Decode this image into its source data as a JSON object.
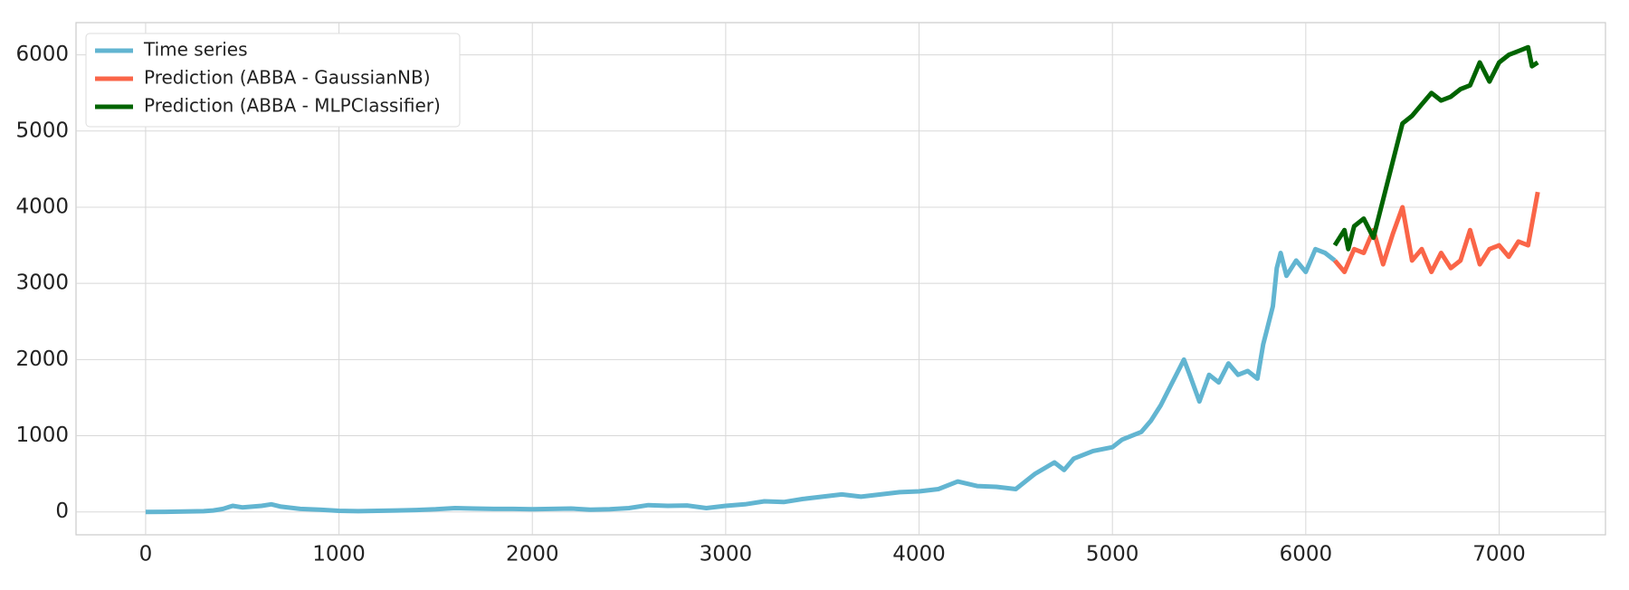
{
  "chart_data": {
    "type": "line",
    "grid": true,
    "legend": "upper left",
    "xlim": [
      -360,
      7550
    ],
    "ylim": [
      -300,
      6423
    ],
    "xticks": [
      0,
      1000,
      2000,
      3000,
      4000,
      5000,
      6000,
      7000
    ],
    "yticks": [
      0,
      1000,
      2000,
      3000,
      4000,
      5000,
      6000
    ],
    "series": [
      {
        "name": "Time series",
        "color": "#62b5d1",
        "x": [
          0,
          100,
          200,
          300,
          350,
          400,
          450,
          500,
          550,
          600,
          650,
          700,
          800,
          900,
          1000,
          1100,
          1200,
          1300,
          1400,
          1500,
          1600,
          1700,
          1800,
          1900,
          2000,
          2100,
          2200,
          2300,
          2400,
          2500,
          2600,
          2700,
          2800,
          2900,
          3000,
          3100,
          3200,
          3300,
          3400,
          3500,
          3600,
          3700,
          3800,
          3900,
          4000,
          4100,
          4200,
          4300,
          4400,
          4500,
          4600,
          4700,
          4750,
          4800,
          4900,
          5000,
          5050,
          5100,
          5150,
          5200,
          5250,
          5300,
          5350,
          5370,
          5400,
          5450,
          5500,
          5550,
          5600,
          5650,
          5700,
          5750,
          5780,
          5800,
          5830,
          5850,
          5870,
          5900,
          5950,
          6000,
          6050,
          6100,
          6150
        ],
        "values": [
          0,
          2,
          5,
          10,
          20,
          40,
          80,
          60,
          70,
          80,
          100,
          70,
          40,
          30,
          15,
          10,
          15,
          20,
          25,
          35,
          50,
          45,
          40,
          40,
          35,
          40,
          45,
          30,
          35,
          50,
          90,
          80,
          85,
          50,
          80,
          100,
          140,
          130,
          170,
          200,
          230,
          200,
          230,
          260,
          270,
          300,
          400,
          340,
          330,
          300,
          500,
          650,
          550,
          700,
          800,
          850,
          950,
          1000,
          1050,
          1200,
          1400,
          1650,
          1900,
          2000,
          1800,
          1450,
          1800,
          1700,
          1950,
          1800,
          1850,
          1750,
          2200,
          2400,
          2700,
          3200,
          3400,
          3100,
          3300,
          3150,
          3450,
          3400,
          3300
        ]
      },
      {
        "name": "Prediction (ABBA - GaussianNB)",
        "color": "#fa6548",
        "x": [
          6150,
          6200,
          6250,
          6300,
          6350,
          6400,
          6450,
          6500,
          6550,
          6600,
          6650,
          6700,
          6750,
          6800,
          6850,
          6900,
          6950,
          7000,
          7050,
          7100,
          7150,
          7200
        ],
        "values": [
          3300,
          3150,
          3450,
          3400,
          3700,
          3250,
          3650,
          4000,
          3300,
          3450,
          3150,
          3400,
          3200,
          3300,
          3700,
          3250,
          3450,
          3500,
          3350,
          3550,
          3500,
          4200
        ]
      },
      {
        "name": "Prediction (ABBA - MLPClassifier)",
        "color": "#006400",
        "x": [
          6150,
          6200,
          6220,
          6250,
          6300,
          6350,
          6400,
          6450,
          6500,
          6550,
          6600,
          6650,
          6700,
          6750,
          6800,
          6850,
          6900,
          6950,
          7000,
          7050,
          7100,
          7150,
          7170,
          7200
        ],
        "values": [
          3500,
          3700,
          3450,
          3750,
          3850,
          3600,
          4100,
          4600,
          5100,
          5200,
          5350,
          5500,
          5400,
          5450,
          5550,
          5600,
          5900,
          5650,
          5900,
          6000,
          6050,
          6100,
          5850,
          5900
        ]
      }
    ]
  }
}
